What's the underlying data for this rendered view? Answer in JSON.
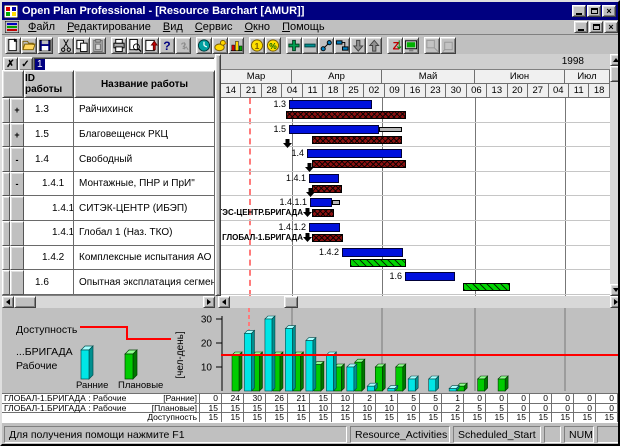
{
  "window": {
    "title": "Open Plan Professional - [Resource Barchart [AMUR]]",
    "year_label": "1998"
  },
  "menu": {
    "items": [
      "Файл",
      "Редактирование",
      "Вид",
      "Сервис",
      "Окно",
      "Помощь"
    ]
  },
  "toolbar": {
    "buttons": [
      {
        "name": "new",
        "group": 0
      },
      {
        "name": "open",
        "group": 0
      },
      {
        "name": "save",
        "group": 0
      },
      {
        "name": "cut",
        "group": 1
      },
      {
        "name": "copy",
        "group": 1
      },
      {
        "name": "paste",
        "group": 1,
        "disabled": true
      },
      {
        "name": "print",
        "group": 2
      },
      {
        "name": "print-preview",
        "group": 2
      },
      {
        "name": "page-setup",
        "group": 2
      },
      {
        "name": "help",
        "group": 2
      },
      {
        "name": "context-help",
        "group": 2,
        "disabled": true
      },
      {
        "name": "time-analysis",
        "group": 3
      },
      {
        "name": "resource-analysis",
        "group": 3
      },
      {
        "name": "histogram",
        "group": 3
      },
      {
        "name": "cost",
        "group": 4
      },
      {
        "name": "percent-complete",
        "group": 4
      },
      {
        "name": "add-activity",
        "group": 5
      },
      {
        "name": "remove-activity",
        "group": 5
      },
      {
        "name": "link-activities",
        "group": 5
      },
      {
        "name": "split-activity",
        "group": 5
      },
      {
        "name": "move-down",
        "group": 5
      },
      {
        "name": "move-up",
        "group": 5
      },
      {
        "name": "sort",
        "group": 6
      },
      {
        "name": "views",
        "group": 6
      },
      {
        "name": "zoom-in",
        "group": 7,
        "disabled": true
      },
      {
        "name": "zoom-out",
        "group": 7,
        "disabled": true
      }
    ]
  },
  "edit_bar": {
    "value": "1"
  },
  "activity_table": {
    "columns": [
      "ID работы",
      "Название работы"
    ],
    "rows": [
      {
        "expand": "+",
        "id": "1.3",
        "level": 1,
        "name": "Райчихинск",
        "bar_label": "1.3",
        "bars": [
          {
            "t": "plan",
            "x1": 68,
            "x2": 151
          },
          {
            "t": "base",
            "x1": 65,
            "x2": 185
          }
        ]
      },
      {
        "expand": "+",
        "id": "1.5",
        "level": 1,
        "name": "Благовещенск РКЦ",
        "bar_label": "1.5",
        "arrow_x": 66,
        "bars": [
          {
            "t": "plan",
            "x1": 68,
            "x2": 158
          },
          {
            "t": "slack",
            "x1": 158,
            "x2": 181
          },
          {
            "t": "base",
            "x1": 91,
            "x2": 181
          }
        ]
      },
      {
        "expand": "-",
        "id": "1.4",
        "level": 1,
        "name": "Свободный",
        "bar_label": "1.4",
        "arrow_x": 88,
        "bars": [
          {
            "t": "plan",
            "x1": 86,
            "x2": 181
          },
          {
            "t": "base",
            "x1": 91,
            "x2": 185
          }
        ]
      },
      {
        "expand": "-",
        "id": "1.4.1",
        "level": 2,
        "name": "Монтажные, ПНР и ПрИ\"",
        "bar_label": "1.4.1",
        "arrow_x": 89,
        "bars": [
          {
            "t": "plan",
            "x1": 88,
            "x2": 118
          },
          {
            "t": "base",
            "x1": 91,
            "x2": 121
          }
        ]
      },
      {
        "expand": "",
        "id": "1.4.1",
        "level": 3,
        "name": "СИТЭК-ЦЕНТР (ИБЭП)",
        "bar_label": "1.4.1.1",
        "sub_label": "ТЭС-ЦЕНТР.БРИГАДА",
        "sub_x": 91,
        "bars": [
          {
            "t": "plan",
            "x1": 89,
            "x2": 111
          },
          {
            "t": "slack",
            "x1": 111,
            "x2": 119
          },
          {
            "t": "base",
            "x1": 91,
            "x2": 113
          }
        ]
      },
      {
        "expand": "",
        "id": "1.4.1",
        "level": 3,
        "name": "Глобал 1 (Наз. ТКО)",
        "bar_label": "1.4.1.2",
        "sub_label": "ГЛОБАЛ-1.БРИГАДА",
        "sub_x": 91,
        "bars": [
          {
            "t": "plan",
            "x1": 88,
            "x2": 119
          },
          {
            "t": "base",
            "x1": 91,
            "x2": 122
          }
        ]
      },
      {
        "expand": "",
        "id": "1.4.2",
        "level": 2,
        "name": "Комплексные испытания АО",
        "bar_label": "1.4.2",
        "bars": [
          {
            "t": "plan",
            "x1": 121,
            "x2": 182
          },
          {
            "t": "green",
            "x1": 129,
            "x2": 185
          }
        ]
      },
      {
        "expand": "",
        "id": "1.6",
        "level": 1,
        "name": "Опытная эксплатация сегмента",
        "bar_label": "1.6",
        "bars": [
          {
            "t": "plan",
            "x1": 184,
            "x2": 234
          },
          {
            "t": "green",
            "x1": 242,
            "x2": 289
          }
        ]
      }
    ]
  },
  "timeline": {
    "months": [
      {
        "label": "Мар",
        "w": 71
      },
      {
        "label": "Апр",
        "w": 90
      },
      {
        "label": "Май",
        "w": 93
      },
      {
        "label": "Июн",
        "w": 90
      },
      {
        "label": "Июл",
        "w": 45
      }
    ],
    "weeks": [
      "14",
      "21",
      "28",
      "04",
      "11",
      "18",
      "25",
      "02",
      "09",
      "16",
      "23",
      "30",
      "06",
      "13",
      "20",
      "27",
      "04",
      "11",
      "18"
    ],
    "month_gridlines": [
      71,
      161,
      254,
      344
    ],
    "timenow_line_x": 28
  },
  "legend": {
    "availability_label": "Доступность",
    "resource_label1": "...БРИГАДА",
    "resource_label2": "Рабочие",
    "early_label": "Ранние",
    "planned_label": "Плановые"
  },
  "chart_data": {
    "type": "bar",
    "title": "",
    "ylabel": "[чел-день]",
    "yticks": [
      10,
      20,
      30
    ],
    "ylim": [
      0,
      33
    ],
    "grid": false,
    "legend_position": "left",
    "categories": [
      "14",
      "21",
      "28",
      "04",
      "11",
      "18",
      "25",
      "02",
      "09",
      "16",
      "23",
      "30",
      "06",
      "13",
      "20",
      "27",
      "04",
      "11",
      "18"
    ],
    "series": [
      {
        "name": "Ранние",
        "values": [
          0,
          24,
          30,
          26,
          21,
          15,
          10,
          2,
          1,
          5,
          5,
          1,
          0,
          0,
          0,
          0,
          0,
          0,
          0
        ]
      },
      {
        "name": "Плановые",
        "values": [
          15,
          15,
          15,
          15,
          11,
          10,
          12,
          10,
          10,
          0,
          0,
          2,
          5,
          5,
          0,
          0,
          0,
          0,
          0
        ]
      }
    ],
    "availability": 15
  },
  "resource_table": {
    "rows": [
      {
        "label": "ГЛОБАЛ-1.БРИГАДА : Рабочие",
        "tag": "[Ранние]",
        "values": [
          0,
          24,
          30,
          26,
          21,
          15,
          10,
          2,
          1,
          5,
          5,
          1,
          0,
          0,
          0,
          0,
          0,
          0,
          0
        ]
      },
      {
        "label": "ГЛОБАЛ-1.БРИГАДА : Рабочие",
        "tag": "[Плановые]",
        "values": [
          15,
          15,
          15,
          15,
          11,
          10,
          12,
          10,
          10,
          0,
          0,
          2,
          5,
          5,
          0,
          0,
          0,
          0,
          0
        ]
      },
      {
        "label": "",
        "tag": "Доступность",
        "values": [
          15,
          15,
          15,
          15,
          15,
          15,
          15,
          15,
          15,
          15,
          15,
          15,
          15,
          15,
          15,
          15,
          15,
          15,
          15
        ]
      }
    ]
  },
  "status_bar": {
    "help": "Для получения помощи нажмите F1",
    "panel1": "Resource_Activities",
    "panel2": "Scheduled_Start",
    "panel3": "NUM"
  },
  "colors": {
    "titlebar": "#000080",
    "bar_planned_blue": "#0010dd",
    "bar_baseline_red": "#8b1010",
    "bar_actual_green": "#00d400",
    "hist_early_cyan": "#00e6e6",
    "hist_planned_green": "#00cc00",
    "availability_line": "#ff0000",
    "timenow_line": "#ff7a7a"
  }
}
